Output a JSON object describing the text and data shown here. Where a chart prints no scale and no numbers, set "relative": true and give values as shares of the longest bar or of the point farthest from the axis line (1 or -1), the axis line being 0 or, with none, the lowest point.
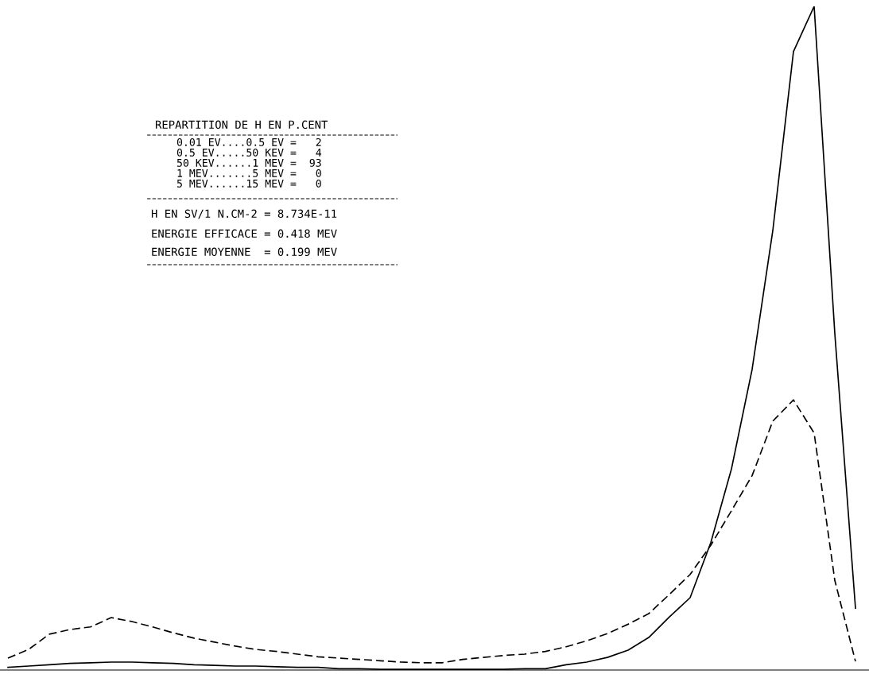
{
  "chart_data": {
    "type": "line",
    "relative": true,
    "title": "REPARTITION DE H EN P.CENT",
    "annotations": [
      "0.01 EV....0.5 EV =   2",
      "0.5 EV.....50 KEV =   4",
      "50 KEV......1 MEV =  93",
      "1 MEV.......5 MEV =   0",
      "5 MEV......15 MEV =   0",
      "H EN SV/1 N.CM-2 = 8.734E-11",
      "ENERGIE EFFICACE = 0.418 MEV",
      "ENERGIE MOYENNE  = 0.199 MEV"
    ],
    "categories": [
      null,
      null,
      null,
      null,
      null,
      null,
      null,
      null,
      null,
      null,
      null,
      null,
      null,
      null,
      null,
      null,
      null,
      null,
      null,
      null,
      null,
      null,
      null,
      null,
      null,
      null,
      null,
      null,
      null,
      null,
      null,
      null,
      null,
      null,
      null,
      null,
      null,
      null,
      null,
      null,
      null,
      null
    ],
    "series": [
      {
        "color": "#000000",
        "line_style": "solid",
        "values": [
          0.004,
          0.006,
          0.008,
          0.01,
          0.011,
          0.012,
          0.012,
          0.011,
          0.01,
          0.008,
          0.007,
          0.006,
          0.006,
          0.005,
          0.004,
          0.004,
          0.002,
          0.002,
          0.001,
          0.001,
          0.001,
          0.001,
          0.001,
          0.001,
          0.001,
          0.002,
          0.002,
          0.008,
          0.012,
          0.019,
          0.03,
          0.049,
          0.08,
          0.109,
          0.192,
          0.303,
          0.453,
          0.662,
          0.932,
          1.0,
          0.507,
          0.093
        ]
      },
      {
        "color": "#000000",
        "line_style": "dashed",
        "values": [
          0.018,
          0.031,
          0.054,
          0.061,
          0.065,
          0.079,
          0.073,
          0.065,
          0.056,
          0.048,
          0.042,
          0.036,
          0.031,
          0.028,
          0.024,
          0.02,
          0.018,
          0.016,
          0.014,
          0.012,
          0.011,
          0.011,
          0.016,
          0.019,
          0.022,
          0.024,
          0.028,
          0.035,
          0.044,
          0.055,
          0.069,
          0.085,
          0.114,
          0.144,
          0.188,
          0.24,
          0.293,
          0.375,
          0.407,
          0.357,
          0.135,
          0.013
        ]
      }
    ]
  }
}
